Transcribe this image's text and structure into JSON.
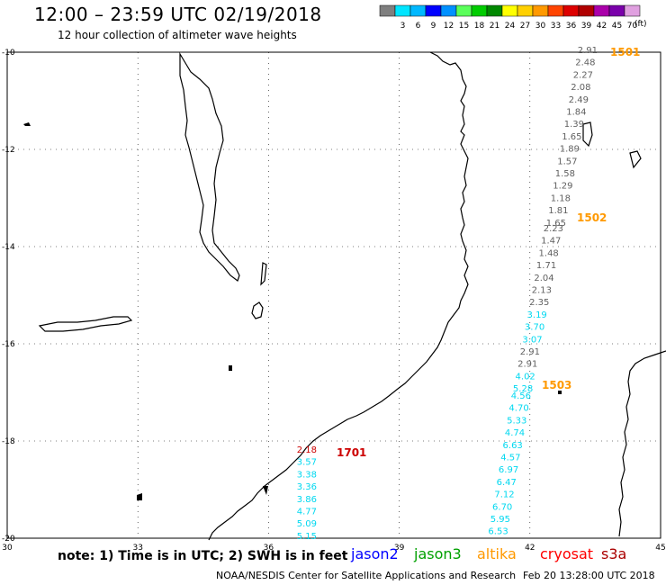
{
  "header": {
    "title": "12:00 – 23:59 UTC 02/19/2018",
    "subtitle": "12 hour collection of altimeter wave heights"
  },
  "legend": {
    "unit": "(ft)",
    "swatches": [
      {
        "color": "#7f7f7f",
        "label": ""
      },
      {
        "color": "#00e5ff",
        "label": "3"
      },
      {
        "color": "#00b8ff",
        "label": "6"
      },
      {
        "color": "#0000ff",
        "label": "9"
      },
      {
        "color": "#0090ff",
        "label": "12"
      },
      {
        "color": "#5aff5a",
        "label": "15"
      },
      {
        "color": "#00cc00",
        "label": "18"
      },
      {
        "color": "#008800",
        "label": "21"
      },
      {
        "color": "#ffff00",
        "label": "24"
      },
      {
        "color": "#ffd000",
        "label": "27"
      },
      {
        "color": "#ff9900",
        "label": "30"
      },
      {
        "color": "#ff4400",
        "label": "33"
      },
      {
        "color": "#dd0000",
        "label": "36"
      },
      {
        "color": "#b00000",
        "label": "39"
      },
      {
        "color": "#aa00aa",
        "label": "42"
      },
      {
        "color": "#7a00aa",
        "label": "45"
      },
      {
        "color": "#e0a0e0",
        "label": "70"
      }
    ]
  },
  "axes": {
    "lat_ticks": [
      "-10",
      "-12",
      "-14",
      "-16",
      "-18",
      "-20"
    ],
    "lon_ticks": [
      "30",
      "33",
      "36",
      "39",
      "42",
      "45"
    ]
  },
  "colors": {
    "gray": "#606060",
    "cyan": "#00d8f0",
    "red": "#cc0000",
    "orange": "#ff9900"
  },
  "tracks": [
    {
      "id": "1501",
      "color": "orange",
      "values": [
        {
          "v": "2.91",
          "c": "gray"
        },
        {
          "v": "2.48",
          "c": "gray"
        },
        {
          "v": "2.27",
          "c": "gray"
        },
        {
          "v": "2.08",
          "c": "gray"
        },
        {
          "v": "2.49",
          "c": "gray"
        },
        {
          "v": "1.84",
          "c": "gray"
        },
        {
          "v": "1.39",
          "c": "gray"
        },
        {
          "v": "1.65",
          "c": "gray"
        },
        {
          "v": "1.89",
          "c": "gray"
        },
        {
          "v": "1.57",
          "c": "gray"
        },
        {
          "v": "1.58",
          "c": "gray"
        },
        {
          "v": "1.29",
          "c": "gray"
        },
        {
          "v": "1.18",
          "c": "gray"
        },
        {
          "v": "1.81",
          "c": "gray"
        },
        {
          "v": "1.65",
          "c": "gray"
        }
      ]
    },
    {
      "id": "1502",
      "color": "orange",
      "values": [
        {
          "v": "2.23",
          "c": "gray"
        },
        {
          "v": "1.47",
          "c": "gray"
        },
        {
          "v": "1.48",
          "c": "gray"
        },
        {
          "v": "1.71",
          "c": "gray"
        },
        {
          "v": "2.04",
          "c": "gray"
        },
        {
          "v": "2.13",
          "c": "gray"
        },
        {
          "v": "2.35",
          "c": "gray"
        },
        {
          "v": "3.19",
          "c": "cyan"
        },
        {
          "v": "3.70",
          "c": "cyan"
        },
        {
          "v": "3.07",
          "c": "cyan"
        },
        {
          "v": "2.91",
          "c": "gray"
        },
        {
          "v": "2.91",
          "c": "gray"
        },
        {
          "v": "4.02",
          "c": "cyan"
        },
        {
          "v": "5.28",
          "c": "cyan"
        }
      ]
    },
    {
      "id": "1503",
      "color": "orange",
      "values": [
        {
          "v": "4.56",
          "c": "cyan"
        },
        {
          "v": "4.70",
          "c": "cyan"
        },
        {
          "v": "5.33",
          "c": "cyan"
        },
        {
          "v": "4.74",
          "c": "cyan"
        },
        {
          "v": "6.63",
          "c": "cyan"
        },
        {
          "v": "4.57",
          "c": "cyan"
        },
        {
          "v": "6.97",
          "c": "cyan"
        },
        {
          "v": "6.47",
          "c": "cyan"
        },
        {
          "v": "7.12",
          "c": "cyan"
        },
        {
          "v": "6.70",
          "c": "cyan"
        },
        {
          "v": "5.95",
          "c": "cyan"
        },
        {
          "v": "6.53",
          "c": "cyan"
        }
      ]
    },
    {
      "id": "1701",
      "color": "red",
      "values": [
        {
          "v": "2.18",
          "c": "red"
        },
        {
          "v": "3.57",
          "c": "cyan"
        },
        {
          "v": "3.38",
          "c": "cyan"
        },
        {
          "v": "3.36",
          "c": "cyan"
        },
        {
          "v": "3.86",
          "c": "cyan"
        },
        {
          "v": "4.77",
          "c": "cyan"
        },
        {
          "v": "5.09",
          "c": "cyan"
        },
        {
          "v": "5.15",
          "c": "cyan"
        }
      ]
    }
  ],
  "note": "note:  1) Time is in UTC; 2) SWH is in feet",
  "satellites": [
    {
      "name": "jason2",
      "color": "#0000ff"
    },
    {
      "name": "jason3",
      "color": "#00a000"
    },
    {
      "name": "altika",
      "color": "#ff9900"
    },
    {
      "name": "cryosat",
      "color": "#ff0000"
    },
    {
      "name": "s3a",
      "color": "#aa0000"
    }
  ],
  "footer": {
    "credit": "NOAA/NESDIS Center for Satellite Applications and Research",
    "timestamp": "Feb 20 13:28:00 UTC 2018"
  }
}
